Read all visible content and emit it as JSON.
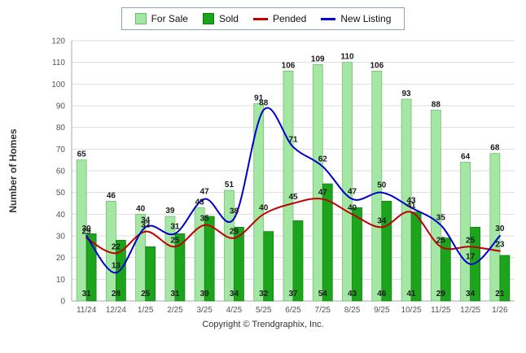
{
  "legend": {
    "items": [
      {
        "label": "For Sale",
        "type": "bar",
        "color": "#A4E6A4",
        "border": "#5FBF5F"
      },
      {
        "label": "Sold",
        "type": "bar",
        "color": "#1CA41C",
        "border": "#0F7E0F"
      },
      {
        "label": "Pended",
        "type": "line",
        "color": "#C00000"
      },
      {
        "label": "New Listing",
        "type": "line",
        "color": "#0000CC"
      }
    ]
  },
  "axes": {
    "y_title": "Number of Homes",
    "y_min": 0,
    "y_max": 120,
    "y_step": 10
  },
  "footer": {
    "copyright": "Copyright © Trendgraphix, Inc."
  },
  "chart_data": {
    "type": "bar",
    "subtype": "grouped bars with overlaid smooth lines",
    "title": "",
    "xlabel": "",
    "ylabel": "Number of Homes",
    "ylim": [
      0,
      120
    ],
    "ytick_step": 10,
    "grid": true,
    "legend_position": "top-center",
    "value_labels": true,
    "categories": [
      "11/24",
      "12/24",
      "1/25",
      "2/25",
      "3/25",
      "4/25",
      "5/25",
      "6/25",
      "7/25",
      "8/25",
      "9/25",
      "10/25",
      "11/25",
      "12/25",
      "1/26"
    ],
    "series": [
      {
        "name": "For Sale",
        "type": "bar",
        "color": "#A4E6A4",
        "border": "#69C069",
        "values": [
          65,
          46,
          40,
          39,
          43,
          51,
          91,
          106,
          109,
          110,
          106,
          93,
          88,
          64,
          68
        ]
      },
      {
        "name": "Sold",
        "type": "bar",
        "color": "#1CA41C",
        "border": "#0F7E0F",
        "values": [
          31,
          28,
          25,
          31,
          39,
          34,
          32,
          37,
          54,
          43,
          46,
          41,
          29,
          34,
          21
        ]
      },
      {
        "name": "Pended",
        "type": "line",
        "color": "#C00000",
        "values": [
          29,
          22,
          32,
          25,
          35,
          29,
          40,
          45,
          47,
          40,
          34,
          41,
          25,
          25,
          23
        ]
      },
      {
        "name": "New Listing",
        "type": "line",
        "color": "#0000CC",
        "values": [
          30,
          13,
          34,
          31,
          47,
          38,
          88,
          71,
          62,
          47,
          50,
          43,
          35,
          17,
          30
        ]
      }
    ]
  }
}
